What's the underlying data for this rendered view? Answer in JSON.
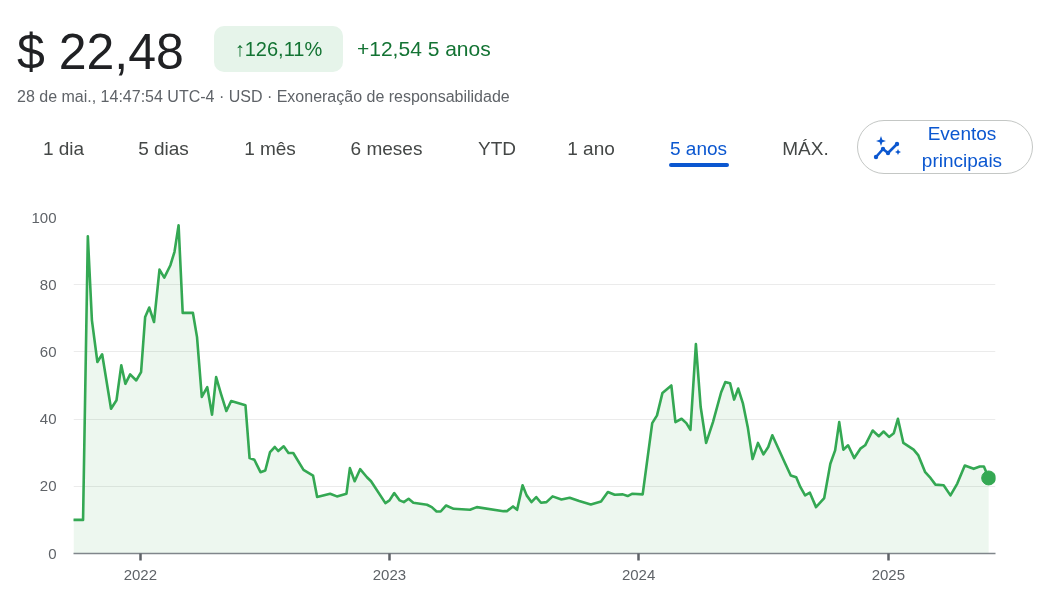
{
  "chart_data": {
    "type": "area",
    "title": "$ 22,48",
    "subtitle": "28 de mai., 14:47:54 UTC-4 · USD · Exoneração de responsabilidade",
    "annotations": [
      "↑126,11%",
      "+12,54 5 anos",
      "1 dia",
      "5 dias",
      "1 mês",
      "6 meses",
      "YTD",
      "1 ano",
      "5 anos",
      "MÁX.",
      "Eventos principais"
    ],
    "xlim": [
      "2021-09-25",
      "2025-06-07"
    ],
    "xticks": [
      {
        "value": "2022-01-01",
        "label": "2022"
      },
      {
        "value": "2023-01-01",
        "label": "2023"
      },
      {
        "value": "2024-01-01",
        "label": "2024"
      },
      {
        "value": "2025-01-01",
        "label": "2025"
      }
    ],
    "ylim": [
      0,
      100
    ],
    "yticks": [
      0,
      20,
      40,
      60,
      80,
      100
    ],
    "grid": "y",
    "series": [
      {
        "color": "#34a853",
        "x": [
          "2021-09-25",
          "2021-10-09",
          "2021-10-16",
          "2021-10-22",
          "2021-10-30",
          "2021-11-06",
          "2021-11-19",
          "2021-11-27",
          "2021-12-04",
          "2021-12-10",
          "2021-12-17",
          "2021-12-26",
          "2022-01-02",
          "2022-01-08",
          "2022-01-14",
          "2022-01-21",
          "2022-01-29",
          "2022-02-05",
          "2022-02-14",
          "2022-02-20",
          "2022-02-26",
          "2022-03-04",
          "2022-03-19",
          "2022-03-25",
          "2022-04-01",
          "2022-04-09",
          "2022-04-16",
          "2022-04-22",
          "2022-04-29",
          "2022-05-07",
          "2022-05-14",
          "2022-06-04",
          "2022-06-10",
          "2022-06-17",
          "2022-06-26",
          "2022-07-03",
          "2022-07-10",
          "2022-07-17",
          "2022-07-22",
          "2022-07-30",
          "2022-08-06",
          "2022-08-13",
          "2022-08-28",
          "2022-09-11",
          "2022-09-17",
          "2022-10-06",
          "2022-10-16",
          "2022-10-30",
          "2022-11-04",
          "2022-11-11",
          "2022-11-19",
          "2022-11-29",
          "2022-12-05",
          "2022-12-26",
          "2023-01-01",
          "2023-01-08",
          "2023-01-16",
          "2023-01-22",
          "2023-01-29",
          "2023-02-05",
          "2023-02-25",
          "2023-03-04",
          "2023-03-11",
          "2023-03-17",
          "2023-03-25",
          "2023-04-05",
          "2023-04-29",
          "2023-05-09",
          "2023-06-17",
          "2023-06-22",
          "2023-07-01",
          "2023-07-07",
          "2023-07-15",
          "2023-07-21",
          "2023-07-28",
          "2023-08-04",
          "2023-08-11",
          "2023-08-19",
          "2023-08-28",
          "2023-09-10",
          "2023-09-22",
          "2023-10-06",
          "2023-10-23",
          "2023-11-07",
          "2023-11-17",
          "2023-11-27",
          "2023-12-09",
          "2023-12-16",
          "2023-12-23",
          "2024-01-07",
          "2024-01-21",
          "2024-01-28",
          "2024-02-05",
          "2024-02-18",
          "2024-02-24",
          "2024-03-04",
          "2024-03-11",
          "2024-03-17",
          "2024-03-25",
          "2024-04-01",
          "2024-04-09",
          "2024-04-19",
          "2024-05-01",
          "2024-05-07",
          "2024-05-14",
          "2024-05-20",
          "2024-05-26",
          "2024-06-02",
          "2024-06-09",
          "2024-06-16",
          "2024-06-24",
          "2024-07-02",
          "2024-07-09",
          "2024-07-15",
          "2024-07-24",
          "2024-08-03",
          "2024-08-11",
          "2024-08-19",
          "2024-08-25",
          "2024-09-01",
          "2024-09-08",
          "2024-09-17",
          "2024-09-29",
          "2024-10-08",
          "2024-10-15",
          "2024-10-21",
          "2024-10-27",
          "2024-11-03",
          "2024-11-12",
          "2024-11-21",
          "2024-11-28",
          "2024-12-09",
          "2024-12-18",
          "2024-12-25",
          "2025-01-02",
          "2025-01-09",
          "2025-01-15",
          "2025-01-23",
          "2025-02-07",
          "2025-02-14",
          "2025-02-24",
          "2025-03-04",
          "2025-03-11",
          "2025-03-23",
          "2025-04-02",
          "2025-04-12",
          "2025-04-23",
          "2025-05-06",
          "2025-05-15",
          "2025-05-21",
          "2025-05-28"
        ],
        "values": [
          10.0,
          10.0,
          94.4,
          69.4,
          57.0,
          59.3,
          43.1,
          45.6,
          56.0,
          50.5,
          53.3,
          51.5,
          54.0,
          70.4,
          73.2,
          68.9,
          84.5,
          82.1,
          85.8,
          89.8,
          97.7,
          71.6,
          71.6,
          64.4,
          46.6,
          49.5,
          41.3,
          52.5,
          47.6,
          42.4,
          45.4,
          44.1,
          28.4,
          27.9,
          24.2,
          24.7,
          30.2,
          31.7,
          30.5,
          31.9,
          29.9,
          29.9,
          24.9,
          23.2,
          16.8,
          17.8,
          17.0,
          17.8,
          25.4,
          21.5,
          25.1,
          22.7,
          21.5,
          15.0,
          15.8,
          18.0,
          15.8,
          15.3,
          16.3,
          15.1,
          14.5,
          13.8,
          12.5,
          12.5,
          14.3,
          13.3,
          13.0,
          13.8,
          12.6,
          12.6,
          14.0,
          13.0,
          20.3,
          17.3,
          15.3,
          16.8,
          15.1,
          15.3,
          17.0,
          16.1,
          16.6,
          15.6,
          14.6,
          15.5,
          18.3,
          17.5,
          17.6,
          17.1,
          17.8,
          17.6,
          38.8,
          41.1,
          47.8,
          50.0,
          39.1,
          40.1,
          38.8,
          36.8,
          62.3,
          43.6,
          32.9,
          39.1,
          48.0,
          51.0,
          50.7,
          45.8,
          49.1,
          44.6,
          37.6,
          28.1,
          32.9,
          29.5,
          31.7,
          35.2,
          31.2,
          26.7,
          23.2,
          22.7,
          19.8,
          17.3,
          18.1,
          13.8,
          16.5,
          26.7,
          30.7,
          39.1,
          30.9,
          32.2,
          28.4,
          31.2,
          32.2,
          36.6,
          34.9,
          36.3,
          34.7,
          35.8,
          40.1,
          32.9,
          30.9,
          29.2,
          24.2,
          22.4,
          20.5,
          20.3,
          17.3,
          20.8,
          26.2,
          25.2,
          25.9,
          25.9,
          22.48
        ]
      },
      {
        "type": "scatter",
        "marker": "circle",
        "color": "#34a853",
        "x": [
          "2025-05-28"
        ],
        "values": [
          22.48
        ]
      }
    ]
  }
}
